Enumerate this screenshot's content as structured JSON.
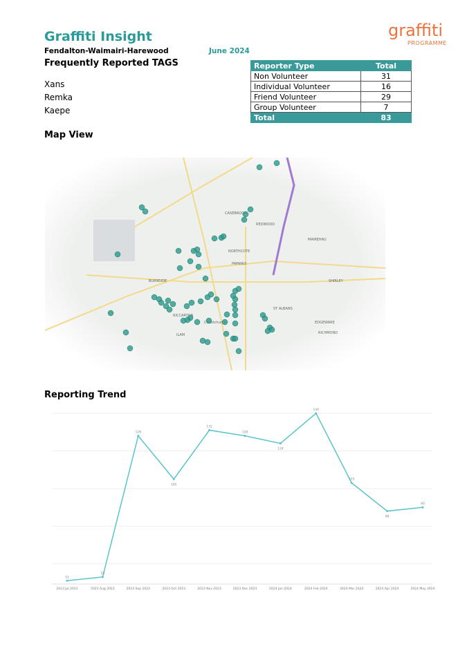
{
  "header": {
    "title": "Graffiti Insight",
    "area": "Fendalton-Waimairi-Harewood",
    "date": "June 2024",
    "logo": {
      "main": "graffiti",
      "sub": "PROGRAMME"
    }
  },
  "tags": {
    "title": "Frequently Reported TAGS",
    "items": [
      "Xans",
      "Remka",
      "Kaepe"
    ]
  },
  "reporter_table": {
    "columns": [
      "Reporter Type",
      "Total"
    ],
    "rows": [
      [
        "Non Volunteer",
        31
      ],
      [
        "Individual Volunteer",
        16
      ],
      [
        "Friend Volunteer",
        29
      ],
      [
        "Group Volunteer",
        7
      ]
    ],
    "total": [
      "Total",
      83
    ]
  },
  "map": {
    "title": "Map View",
    "labels": [
      "CASEBROOK",
      "REDWOOD",
      "NORTHCOTE",
      "PAPANUI",
      "ST ALBANS",
      "MAIREHAU",
      "SHIRLEY",
      "BURNSIDE",
      "ILAM",
      "RICCARTON",
      "Christchurch",
      "EDGEWARE",
      "RICHMOND"
    ]
  },
  "chart_data": {
    "type": "line",
    "title": "Reporting Trend",
    "categories": [
      "2023 Jul 2023",
      "2023 Aug 2023",
      "2023 Sep 2023",
      "2023 Oct 2023",
      "2023 Nov 2023",
      "2023 Dec 2023",
      "2024 Jan 2024",
      "2024 Feb 2024",
      "2024 Mar 2024",
      "2024 Apr 2024",
      "2024 May 2024"
    ],
    "values": [
      51,
      53,
      128,
      105,
      131,
      128,
      124,
      140,
      103,
      88,
      90
    ],
    "color": "#5bc3cc",
    "ylim": [
      50,
      140
    ],
    "yticks": [
      60,
      80,
      100,
      120,
      140
    ],
    "grid": true
  }
}
